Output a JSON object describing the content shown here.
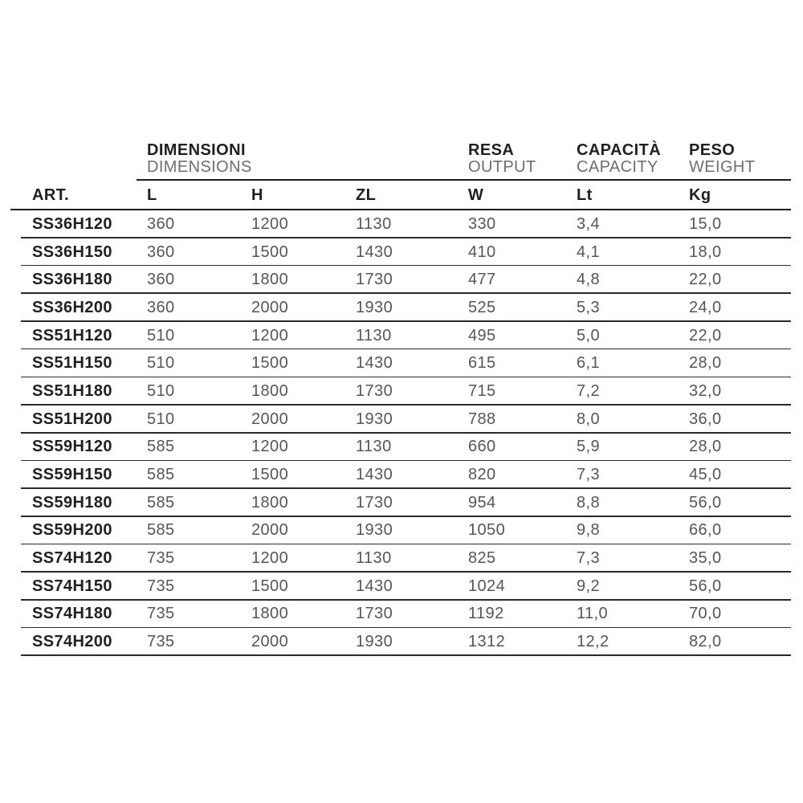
{
  "table": {
    "group_headers": [
      {
        "title": "DIMENSIONI",
        "subtitle": "DIMENSIONS"
      },
      {
        "title": "RESA",
        "subtitle": "OUTPUT"
      },
      {
        "title": "CAPACITÀ",
        "subtitle": "CAPACITY"
      },
      {
        "title": "PESO",
        "subtitle": "WEIGHT"
      }
    ],
    "art_header": "ART.",
    "columns": [
      "L",
      "H",
      "ZL",
      "W",
      "Lt",
      "Kg"
    ],
    "rows": [
      {
        "art": "SS36H120",
        "values": [
          "360",
          "1200",
          "1130",
          "330",
          "3,4",
          "15,0"
        ]
      },
      {
        "art": "SS36H150",
        "values": [
          "360",
          "1500",
          "1430",
          "410",
          "4,1",
          "18,0"
        ]
      },
      {
        "art": "SS36H180",
        "values": [
          "360",
          "1800",
          "1730",
          "477",
          "4,8",
          "22,0"
        ]
      },
      {
        "art": "SS36H200",
        "values": [
          "360",
          "2000",
          "1930",
          "525",
          "5,3",
          "24,0"
        ]
      },
      {
        "art": "SS51H120",
        "values": [
          "510",
          "1200",
          "1130",
          "495",
          "5,0",
          "22,0"
        ]
      },
      {
        "art": "SS51H150",
        "values": [
          "510",
          "1500",
          "1430",
          "615",
          "6,1",
          "28,0"
        ]
      },
      {
        "art": "SS51H180",
        "values": [
          "510",
          "1800",
          "1730",
          "715",
          "7,2",
          "32,0"
        ]
      },
      {
        "art": "SS51H200",
        "values": [
          "510",
          "2000",
          "1930",
          "788",
          "8,0",
          "36,0"
        ]
      },
      {
        "art": "SS59H120",
        "values": [
          "585",
          "1200",
          "1130",
          "660",
          "5,9",
          "28,0"
        ]
      },
      {
        "art": "SS59H150",
        "values": [
          "585",
          "1500",
          "1430",
          "820",
          "7,3",
          "45,0"
        ]
      },
      {
        "art": "SS59H180",
        "values": [
          "585",
          "1800",
          "1730",
          "954",
          "8,8",
          "56,0"
        ]
      },
      {
        "art": "SS59H200",
        "values": [
          "585",
          "2000",
          "1930",
          "1050",
          "9,8",
          "66,0"
        ]
      },
      {
        "art": "SS74H120",
        "values": [
          "735",
          "1200",
          "1130",
          "825",
          "7,3",
          "35,0"
        ]
      },
      {
        "art": "SS74H150",
        "values": [
          "735",
          "1500",
          "1430",
          "1024",
          "9,2",
          "56,0"
        ]
      },
      {
        "art": "SS74H180",
        "values": [
          "735",
          "1800",
          "1730",
          "1192",
          "11,0",
          "70,0"
        ]
      },
      {
        "art": "SS74H200",
        "values": [
          "735",
          "2000",
          "1930",
          "1312",
          "12,2",
          "82,0"
        ]
      }
    ]
  },
  "colors": {
    "text_dark": "#231f20",
    "text_gray": "#55565a",
    "line": "#231f20",
    "background": "#ffffff"
  }
}
